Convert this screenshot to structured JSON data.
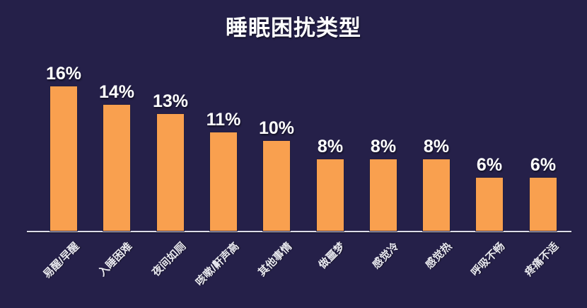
{
  "title": "睡眠困扰类型",
  "colors": {
    "background": "#252049",
    "bar": "#F9A04F",
    "bar_border": "#221E40",
    "axis": "#DCDCE8",
    "title_text": "#FFFFFF",
    "value_text": "#FFFFFF",
    "category_text": "#E8E8F0"
  },
  "chart_data": {
    "type": "bar",
    "title": "睡眠困扰类型",
    "categories": [
      "易醒/早醒",
      "入睡困难",
      "夜间如厕",
      "咳嗽/鼾声高",
      "其他事情",
      "做噩梦",
      "感觉冷",
      "感觉热",
      "呼吸不畅",
      "疼痛不适"
    ],
    "values": [
      16,
      14,
      13,
      11,
      10,
      8,
      8,
      8,
      6,
      6
    ],
    "value_labels": [
      "16%",
      "14%",
      "13%",
      "11%",
      "10%",
      "8%",
      "8%",
      "8%",
      "6%",
      "6%"
    ],
    "unit": "%",
    "xlabel": "",
    "ylabel": "",
    "ylim": [
      0,
      17
    ],
    "grid": false,
    "legend": null,
    "bar_color": "#F9A04F",
    "category_label_rotation_deg": 45
  }
}
